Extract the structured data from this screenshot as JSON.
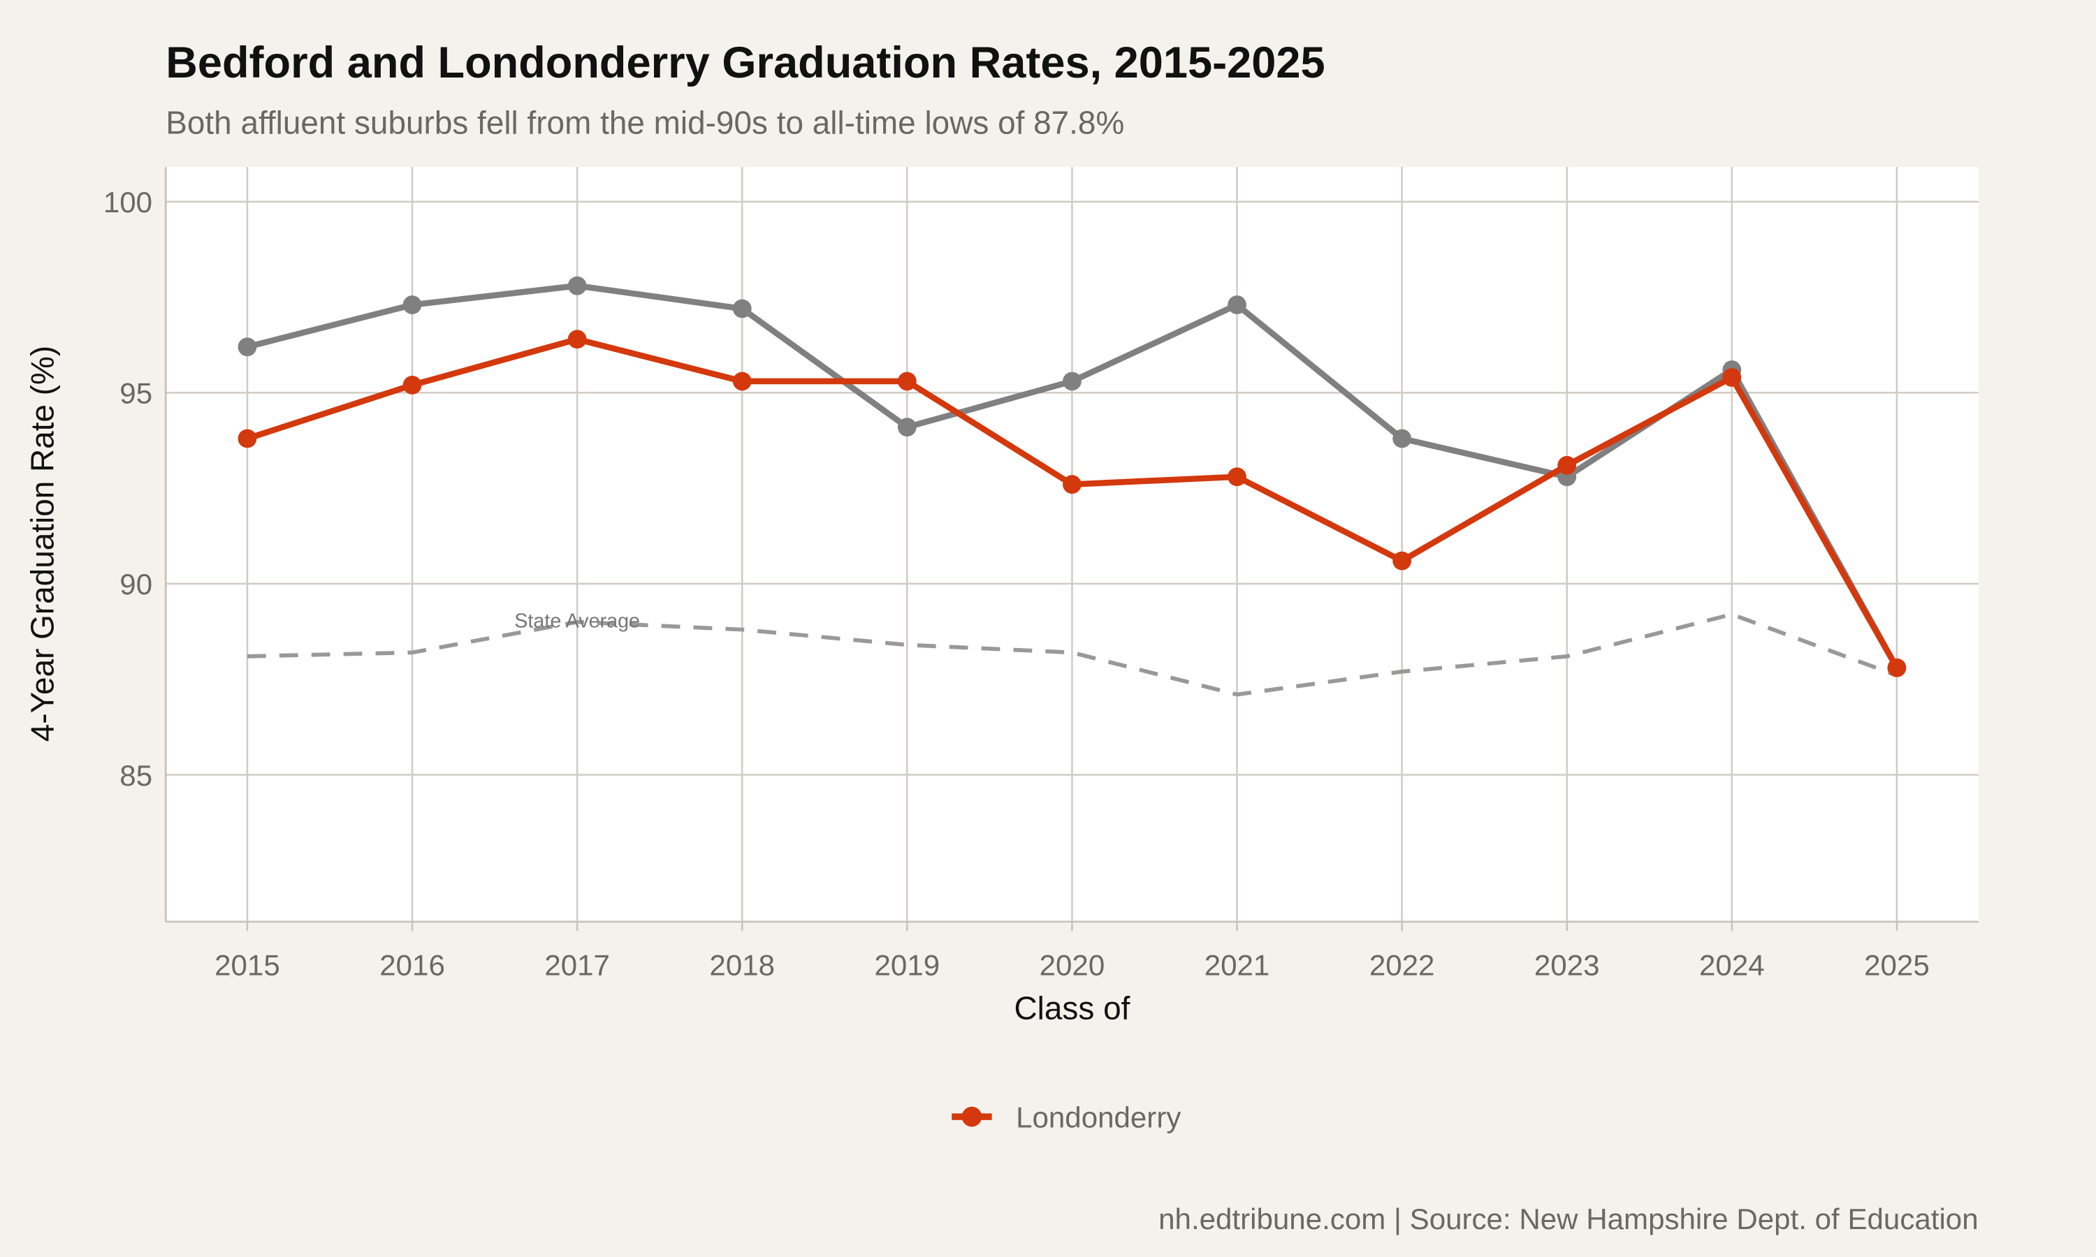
{
  "chart_data": {
    "type": "line",
    "title": "Bedford and Londonderry Graduation Rates, 2015-2025",
    "subtitle": "Both affluent suburbs fell from the mid-90s to all-time lows of 87.8%",
    "xlabel": "Class of",
    "ylabel": "4-Year Graduation Rate (%)",
    "caption": "nh.edtribune.com | Source: New Hampshire Dept. of Education",
    "x": [
      2015,
      2016,
      2017,
      2018,
      2019,
      2020,
      2021,
      2022,
      2023,
      2024,
      2025
    ],
    "x_tick_labels": [
      "2015",
      "2016",
      "2017",
      "2018",
      "2019",
      "2020",
      "2021",
      "2022",
      "2023",
      "2024",
      "2025"
    ],
    "y_ticks": [
      85,
      90,
      95,
      100
    ],
    "y_tick_labels": [
      "85",
      "90",
      "95",
      "100"
    ],
    "ylim": [
      81.1,
      100.9
    ],
    "grid": true,
    "legend_placement": "bottom",
    "legend": [
      {
        "label": "Londonderry",
        "color": "#d4380d"
      }
    ],
    "annotation": {
      "text": "State Average",
      "x": 2017,
      "y": 89.0
    },
    "series": [
      {
        "key": "bedford",
        "color": "#808080",
        "style": "solid",
        "markers": true,
        "values": [
          96.2,
          97.3,
          97.8,
          97.2,
          94.1,
          95.3,
          97.3,
          93.8,
          92.8,
          95.6,
          87.8
        ]
      },
      {
        "key": "state",
        "color": "#999999",
        "style": "dashed",
        "markers": false,
        "values": [
          88.1,
          88.2,
          89.0,
          88.8,
          88.4,
          88.2,
          87.1,
          87.7,
          88.1,
          89.2,
          87.6
        ]
      },
      {
        "name": "Londonderry",
        "key": "londonderry",
        "color": "#d4380d",
        "style": "solid",
        "markers": true,
        "values": [
          93.8,
          95.2,
          96.4,
          95.3,
          95.3,
          92.6,
          92.8,
          90.6,
          93.1,
          95.4,
          87.8
        ]
      }
    ]
  }
}
